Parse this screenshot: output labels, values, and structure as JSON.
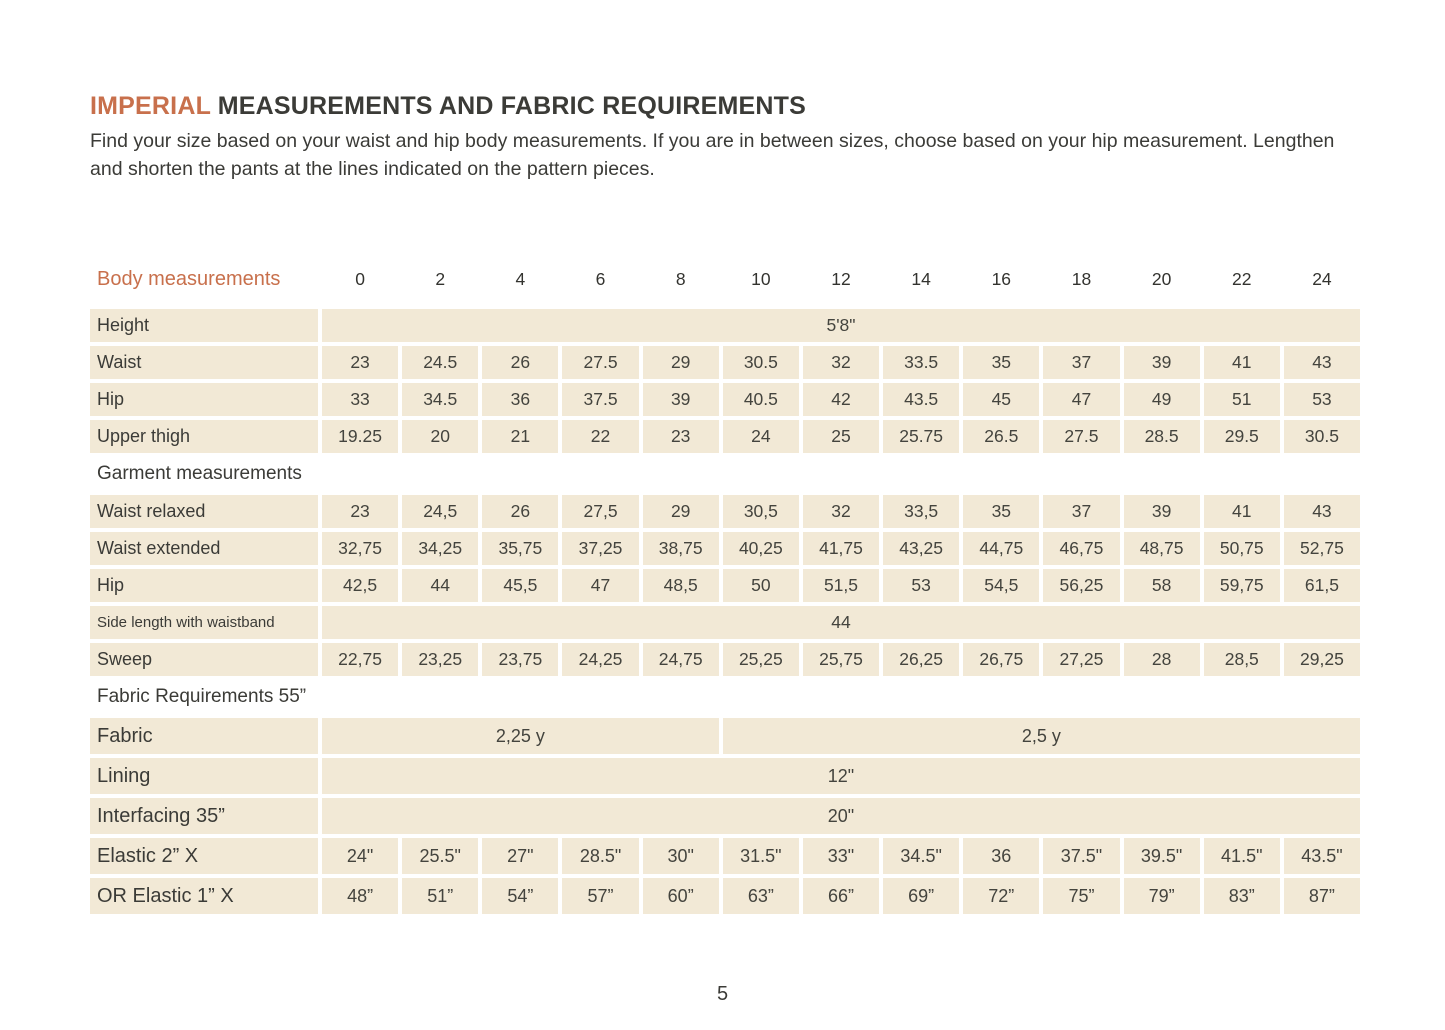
{
  "page": {
    "title_highlight": "IMPERIAL",
    "title_rest": " MEASUREMENTS AND FABRIC REQUIREMENTS",
    "intro": "Find your size based on your waist and hip body measurements. If you are in between sizes, choose based on your hip measurement. Lengthen and shorten the pants at the lines indicated on the pattern pieces.",
    "page_number": "5"
  },
  "colors": {
    "accent_orange": "#c8704c",
    "cell_beige": "#f2e9d6",
    "text_dark": "#3b3b37"
  },
  "table": {
    "header": {
      "label": "Body measurements",
      "sizes": [
        "0",
        "2",
        "4",
        "6",
        "8",
        "10",
        "12",
        "14",
        "16",
        "18",
        "20",
        "22",
        "24"
      ]
    },
    "rows": [
      {
        "type": "span",
        "label": "Height",
        "value": "5'8\""
      },
      {
        "type": "data",
        "label": "Waist",
        "values": [
          "23",
          "24.5",
          "26",
          "27.5",
          "29",
          "30.5",
          "32",
          "33.5",
          "35",
          "37",
          "39",
          "41",
          "43"
        ]
      },
      {
        "type": "data",
        "label": "Hip",
        "values": [
          "33",
          "34.5",
          "36",
          "37.5",
          "39",
          "40.5",
          "42",
          "43.5",
          "45",
          "47",
          "49",
          "51",
          "53"
        ]
      },
      {
        "type": "data",
        "label": "Upper thigh",
        "values": [
          "19.25",
          "20",
          "21",
          "22",
          "23",
          "24",
          "25",
          "25.75",
          "26.5",
          "27.5",
          "28.5",
          "29.5",
          "30.5"
        ]
      },
      {
        "type": "section",
        "label": "Garment measurements"
      },
      {
        "type": "data",
        "label": "Waist relaxed",
        "values": [
          "23",
          "24,5",
          "26",
          "27,5",
          "29",
          "30,5",
          "32",
          "33,5",
          "35",
          "37",
          "39",
          "41",
          "43"
        ]
      },
      {
        "type": "data",
        "label": "Waist extended",
        "values": [
          "32,75",
          "34,25",
          "35,75",
          "37,25",
          "38,75",
          "40,25",
          "41,75",
          "43,25",
          "44,75",
          "46,75",
          "48,75",
          "50,75",
          "52,75"
        ]
      },
      {
        "type": "data",
        "label": "Hip",
        "values": [
          "42,5",
          "44",
          "45,5",
          "47",
          "48,5",
          "50",
          "51,5",
          "53",
          "54,5",
          "56,25",
          "58",
          "59,75",
          "61,5"
        ]
      },
      {
        "type": "span",
        "label": "Side length with waistband",
        "value": "44",
        "label_size": "sm"
      },
      {
        "type": "data",
        "label": "Sweep",
        "values": [
          "22,75",
          "23,25",
          "23,75",
          "24,25",
          "24,75",
          "25,25",
          "25,75",
          "26,25",
          "26,75",
          "27,25",
          "28",
          "28,5",
          "29,25"
        ]
      },
      {
        "type": "section",
        "label": "Fabric Requirements 55”"
      },
      {
        "type": "multispan",
        "label": "Fabric",
        "cells": [
          {
            "value": "2,25 y",
            "span": 5
          },
          {
            "value": "2,5 y",
            "span": 8
          }
        ],
        "label_size": "lg",
        "tall": true
      },
      {
        "type": "span",
        "label": "Lining",
        "value": "12\"",
        "label_size": "lg",
        "tall": true
      },
      {
        "type": "span",
        "label": "Interfacing 35”",
        "value": "20\"",
        "label_size": "lg",
        "tall": true
      },
      {
        "type": "data",
        "label": "Elastic 2” X",
        "values": [
          "24\"",
          "25.5\"",
          "27\"",
          "28.5\"",
          "30\"",
          "31.5\"",
          "33\"",
          "34.5\"",
          "36",
          "37.5\"",
          "39.5\"",
          "41.5\"",
          "43.5\""
        ],
        "label_size": "lg",
        "tall": true
      },
      {
        "type": "data",
        "label": "OR Elastic 1”  X",
        "values": [
          "48”",
          "51”",
          "54”",
          "57”",
          "60”",
          "63”",
          "66”",
          "69”",
          "72”",
          "75”",
          "79”",
          "83”",
          "87”"
        ],
        "label_size": "lg",
        "tall": true
      }
    ]
  }
}
